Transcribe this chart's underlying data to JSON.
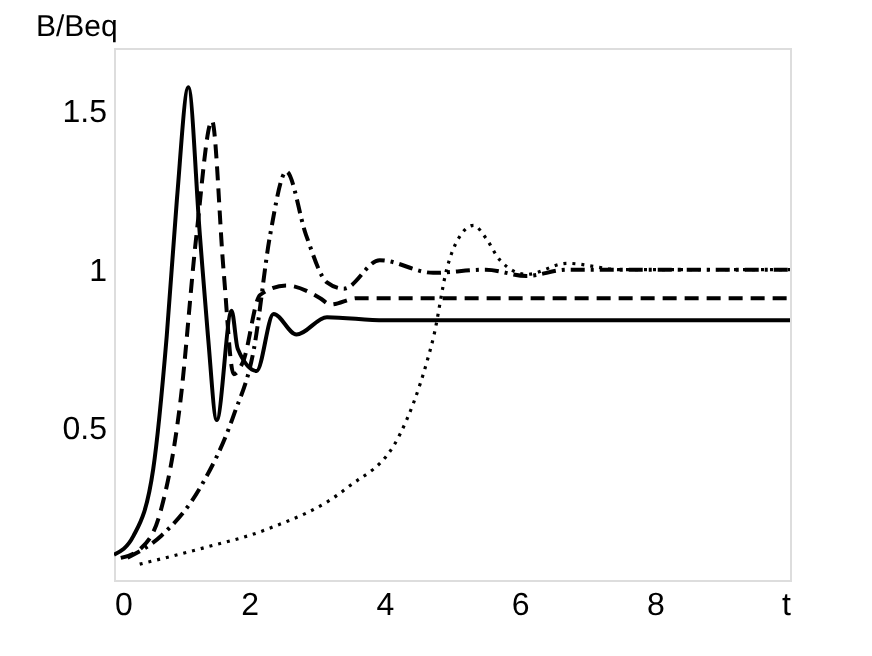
{
  "chart_data": {
    "type": "line",
    "ylabel": "B/Beq",
    "xlim": [
      0,
      10
    ],
    "xticks": [
      0,
      2,
      4,
      6,
      8,
      {
        "value": 10,
        "label": "t"
      }
    ],
    "ylim": [
      0.02,
      1.7
    ],
    "yticks": [
      0.5,
      1,
      1.5
    ],
    "grid": false,
    "marker": "none",
    "series": [
      {
        "color": "#000000",
        "line_style": "solid",
        "x": [
          0,
          0.29,
          0.58,
          0.78,
          0.93,
          1.1,
          1.27,
          1.39,
          1.52,
          1.74,
          1.83,
          2.11,
          2.36,
          2.7,
          3.15,
          4,
          6,
          8,
          10
        ],
        "values": [
          0.1,
          0.16,
          0.37,
          0.79,
          1.22,
          1.576,
          1.11,
          0.79,
          0.525,
          0.87,
          0.75,
          0.68,
          0.86,
          0.795,
          0.85,
          0.84,
          0.84,
          0.84,
          0.84
        ]
      },
      {
        "color": "#000000",
        "line_style": "dashed",
        "x": [
          0.1,
          0.4,
          0.68,
          0.98,
          1.22,
          1.45,
          1.62,
          1.77,
          1.91,
          2.16,
          2.55,
          3.05,
          3.2,
          3.6,
          5,
          8,
          10
        ],
        "values": [
          0.09,
          0.12,
          0.23,
          0.58,
          1.11,
          1.47,
          1.0,
          0.67,
          0.71,
          0.92,
          0.95,
          0.91,
          0.89,
          0.91,
          0.91,
          0.91,
          0.91
        ]
      },
      {
        "color": "#000000",
        "line_style": "dashdot",
        "x": [
          0.2,
          0.7,
          1.27,
          1.77,
          2.07,
          2.31,
          2.55,
          2.84,
          3.15,
          3.4,
          3.93,
          4.72,
          5.5,
          6.1,
          6.7,
          8,
          10
        ],
        "values": [
          0.09,
          0.16,
          0.31,
          0.54,
          0.75,
          1.11,
          1.31,
          1.11,
          0.96,
          0.94,
          1.03,
          0.99,
          1.0,
          0.98,
          1.0,
          1.0,
          1.0
        ]
      },
      {
        "color": "#000000",
        "line_style": "dotted",
        "x": [
          0.38,
          1.3,
          2.26,
          3.44,
          4.23,
          4.63,
          4.73,
          4.92,
          5.1,
          5.32,
          5.5,
          5.71,
          6.1,
          6.7,
          7.5,
          8.5,
          10
        ],
        "values": [
          0.07,
          0.12,
          0.18,
          0.31,
          0.48,
          0.71,
          0.79,
          1.0,
          1.1,
          1.14,
          1.1,
          1.03,
          0.985,
          1.02,
          1.0,
          1.0,
          1.0
        ]
      }
    ]
  }
}
